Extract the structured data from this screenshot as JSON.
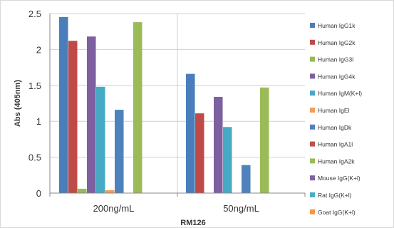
{
  "chart_data": {
    "type": "bar",
    "title": "",
    "xlabel": "RM126",
    "ylabel": "Abs (405nm)",
    "ylim": [
      0,
      2.5
    ],
    "yticks": [
      "0",
      "0.5",
      "1",
      "1.5",
      "2",
      "2.5"
    ],
    "grid": true,
    "legend_position": "right",
    "categories": [
      "200ng/mL",
      "50ng/mL"
    ],
    "series": [
      {
        "name": "Human IgG1k",
        "color": "#4a7ebb",
        "values": [
          2.45,
          1.66
        ]
      },
      {
        "name": "Human IgG2k",
        "color": "#be4b48",
        "values": [
          2.12,
          1.11
        ]
      },
      {
        "name": "Human IgG3l",
        "color": "#98b954",
        "values": [
          0.06,
          0.0
        ]
      },
      {
        "name": "Human IgG4k",
        "color": "#7d60a0",
        "values": [
          2.18,
          1.34
        ]
      },
      {
        "name": "Human IgM(K+l)",
        "color": "#46aac5",
        "values": [
          1.48,
          0.92
        ]
      },
      {
        "name": "Human IgEl",
        "color": "#f59d56",
        "values": [
          0.04,
          0.0
        ]
      },
      {
        "name": "Human IgDk",
        "color": "#4f81bd",
        "values": [
          1.16,
          0.39
        ]
      },
      {
        "name": "Human IgA1l",
        "color": "#c0504d",
        "values": [
          0.0,
          0.0
        ]
      },
      {
        "name": "Human IgA2k",
        "color": "#9bbb59",
        "values": [
          2.38,
          1.47
        ]
      },
      {
        "name": "Mouse IgG(K+l)",
        "color": "#8064a2",
        "values": [
          0.0,
          0.0
        ]
      },
      {
        "name": "Rat IgG(K+l)",
        "color": "#4bacc6",
        "values": [
          0.0,
          0.0
        ]
      },
      {
        "name": "Goat IgG(K+l)",
        "color": "#f79646",
        "values": [
          0.0,
          0.0
        ]
      }
    ]
  }
}
